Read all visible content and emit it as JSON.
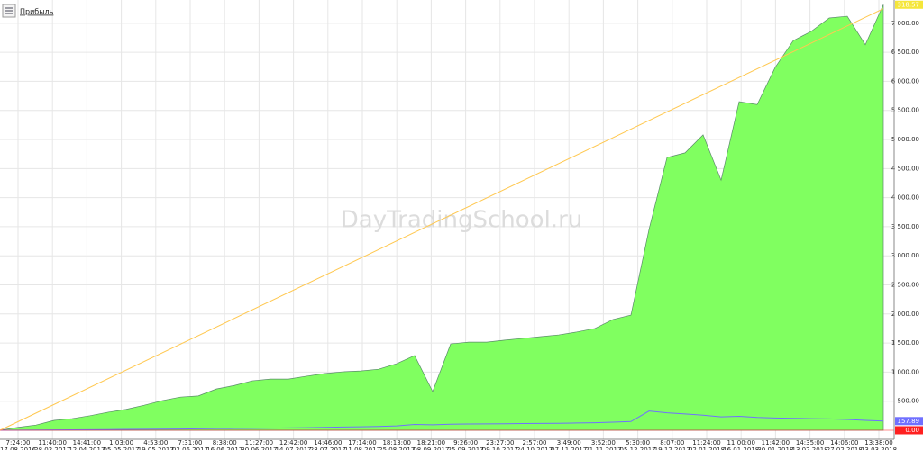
{
  "chart_data": {
    "type": "area",
    "title": "Прибыль",
    "watermark": "DayTradingSchool.ru",
    "ylim": [
      -155,
      7400
    ],
    "yticks": [
      {
        "value": 500,
        "label": "500.00"
      },
      {
        "value": 1000,
        "label": "1 000.00"
      },
      {
        "value": 1500,
        "label": "1 500.00"
      },
      {
        "value": 2000,
        "label": "2 000.00"
      },
      {
        "value": 2500,
        "label": "2 500.00"
      },
      {
        "value": 3000,
        "label": "3 000.00"
      },
      {
        "value": 3500,
        "label": "3 500.00"
      },
      {
        "value": 4000,
        "label": "4 000.00"
      },
      {
        "value": 4500,
        "label": "4 500.00"
      },
      {
        "value": 5000,
        "label": "5 000.00"
      },
      {
        "value": 5500,
        "label": "5 500.00"
      },
      {
        "value": 6000,
        "label": "6 000.00"
      },
      {
        "value": 6500,
        "label": "6 500.00"
      },
      {
        "value": 7000,
        "label": "7 000.00"
      }
    ],
    "grid": true,
    "xlabels": [
      [
        "7:24:00",
        "17.08.2016"
      ],
      [
        "11:40:00",
        "28.02.2017"
      ],
      [
        "14:41:00",
        "12.04.2017"
      ],
      [
        "1:03:00",
        "05.05.2017"
      ],
      [
        "4:53:00",
        "19.05.2017"
      ],
      [
        "7:31:00",
        "02.06.2017"
      ],
      [
        "8:38:00",
        "16.06.2017"
      ],
      [
        "11:27:00",
        "30.06.2017"
      ],
      [
        "12:42:00",
        "14.07.2017"
      ],
      [
        "14:46:00",
        "28.07.2017"
      ],
      [
        "17:14:00",
        "11.08.2017"
      ],
      [
        "18:13:00",
        "25.08.2017"
      ],
      [
        "18:21:00",
        "08.09.2017"
      ],
      [
        "9:26:00",
        "25.09.2017"
      ],
      [
        "23:27:00",
        "09.10.2017"
      ],
      [
        "2:57:00",
        "24.10.2017"
      ],
      [
        "3:49:00",
        "07.11.2017"
      ],
      [
        "3:52:00",
        "21.11.2017"
      ],
      [
        "5:30:00",
        "05.12.2017"
      ],
      [
        "8:07:00",
        "19.12.2017"
      ],
      [
        "11:24:00",
        "02.01.2018"
      ],
      [
        "11:00:00",
        "16.01.2018"
      ],
      [
        "11:42:00",
        "30.01.2018"
      ],
      [
        "14:35:00",
        "13.02.2018"
      ],
      [
        "14:06:00",
        "27.02.2018"
      ],
      [
        "13:38:00",
        "13.03.2018"
      ]
    ],
    "series": [
      {
        "color": "#80ff60",
        "badge": {
          "value": 7318.57,
          "label": "7 318.57"
        },
        "values": [
          0,
          50,
          90,
          170,
          200,
          250,
          310,
          360,
          430,
          510,
          570,
          590,
          710,
          770,
          850,
          880,
          880,
          930,
          975,
          1005,
          1020,
          1050,
          1145,
          1285,
          665,
          1485,
          1515,
          1515,
          1550,
          1580,
          1610,
          1640,
          1690,
          1750,
          1905,
          1980,
          3450,
          4690,
          4770,
          5080,
          4300,
          5650,
          5600,
          6240,
          6700,
          6860,
          7090,
          7120,
          6630,
          7318.57
        ]
      },
      {
        "color": "#7070ff",
        "badge": {
          "value": 157.89,
          "label": "157.89"
        },
        "values": [
          0,
          2,
          4,
          6,
          8,
          10,
          12,
          15,
          18,
          20,
          22,
          25,
          28,
          30,
          33,
          36,
          40,
          45,
          50,
          55,
          60,
          65,
          75,
          100,
          95,
          105,
          108,
          110,
          112,
          115,
          118,
          120,
          125,
          130,
          140,
          150,
          330,
          300,
          280,
          260,
          230,
          240,
          220,
          210,
          205,
          200,
          195,
          185,
          170,
          157.89
        ]
      },
      {
        "color": "#ffc850",
        "x": [
          0,
          49
        ],
        "values": [
          0,
          7250
        ]
      }
    ],
    "baseline": {
      "value": 0,
      "label": "0.00",
      "color": "#ff2020"
    }
  }
}
